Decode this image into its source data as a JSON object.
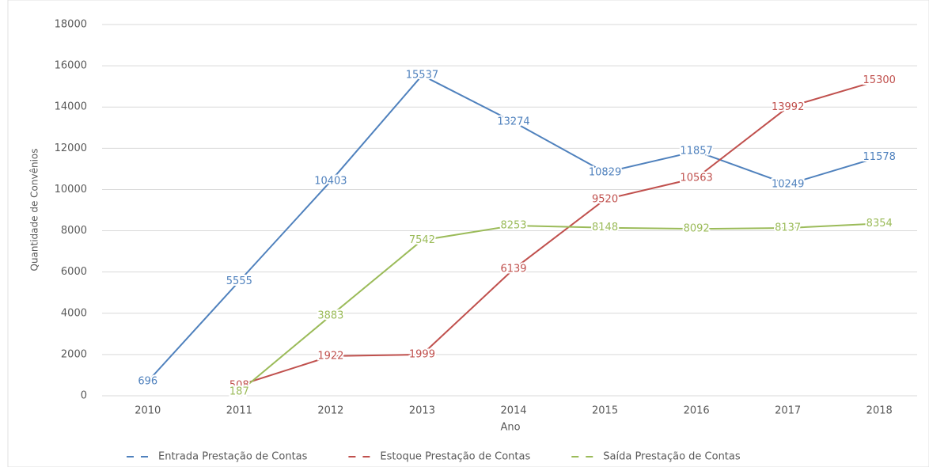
{
  "chart_data": {
    "type": "line",
    "xlabel": "Ano",
    "ylabel": "Quantidade de Convênios",
    "categories": [
      "2010",
      "2011",
      "2012",
      "2013",
      "2014",
      "2015",
      "2016",
      "2017",
      "2018"
    ],
    "series": [
      {
        "name": "Entrada Prestação de Contas",
        "color": "#4f81bd",
        "values": [
          696,
          5555,
          10403,
          15537,
          13274,
          10829,
          11857,
          10249,
          11578
        ]
      },
      {
        "name": "Estoque Prestação de Contas",
        "color": "#c0504d",
        "values": [
          null,
          508,
          1922,
          1999,
          6139,
          9520,
          10563,
          13992,
          15300
        ]
      },
      {
        "name": "Saída Prestação de Contas",
        "color": "#9bbb59",
        "values": [
          null,
          187,
          3883,
          7542,
          8253,
          8148,
          8092,
          8137,
          8354
        ]
      }
    ],
    "ylim": [
      0,
      18000
    ],
    "yticks": [
      0,
      2000,
      4000,
      6000,
      8000,
      10000,
      12000,
      14000,
      16000,
      18000
    ],
    "grid": true,
    "legend": "bottom"
  }
}
